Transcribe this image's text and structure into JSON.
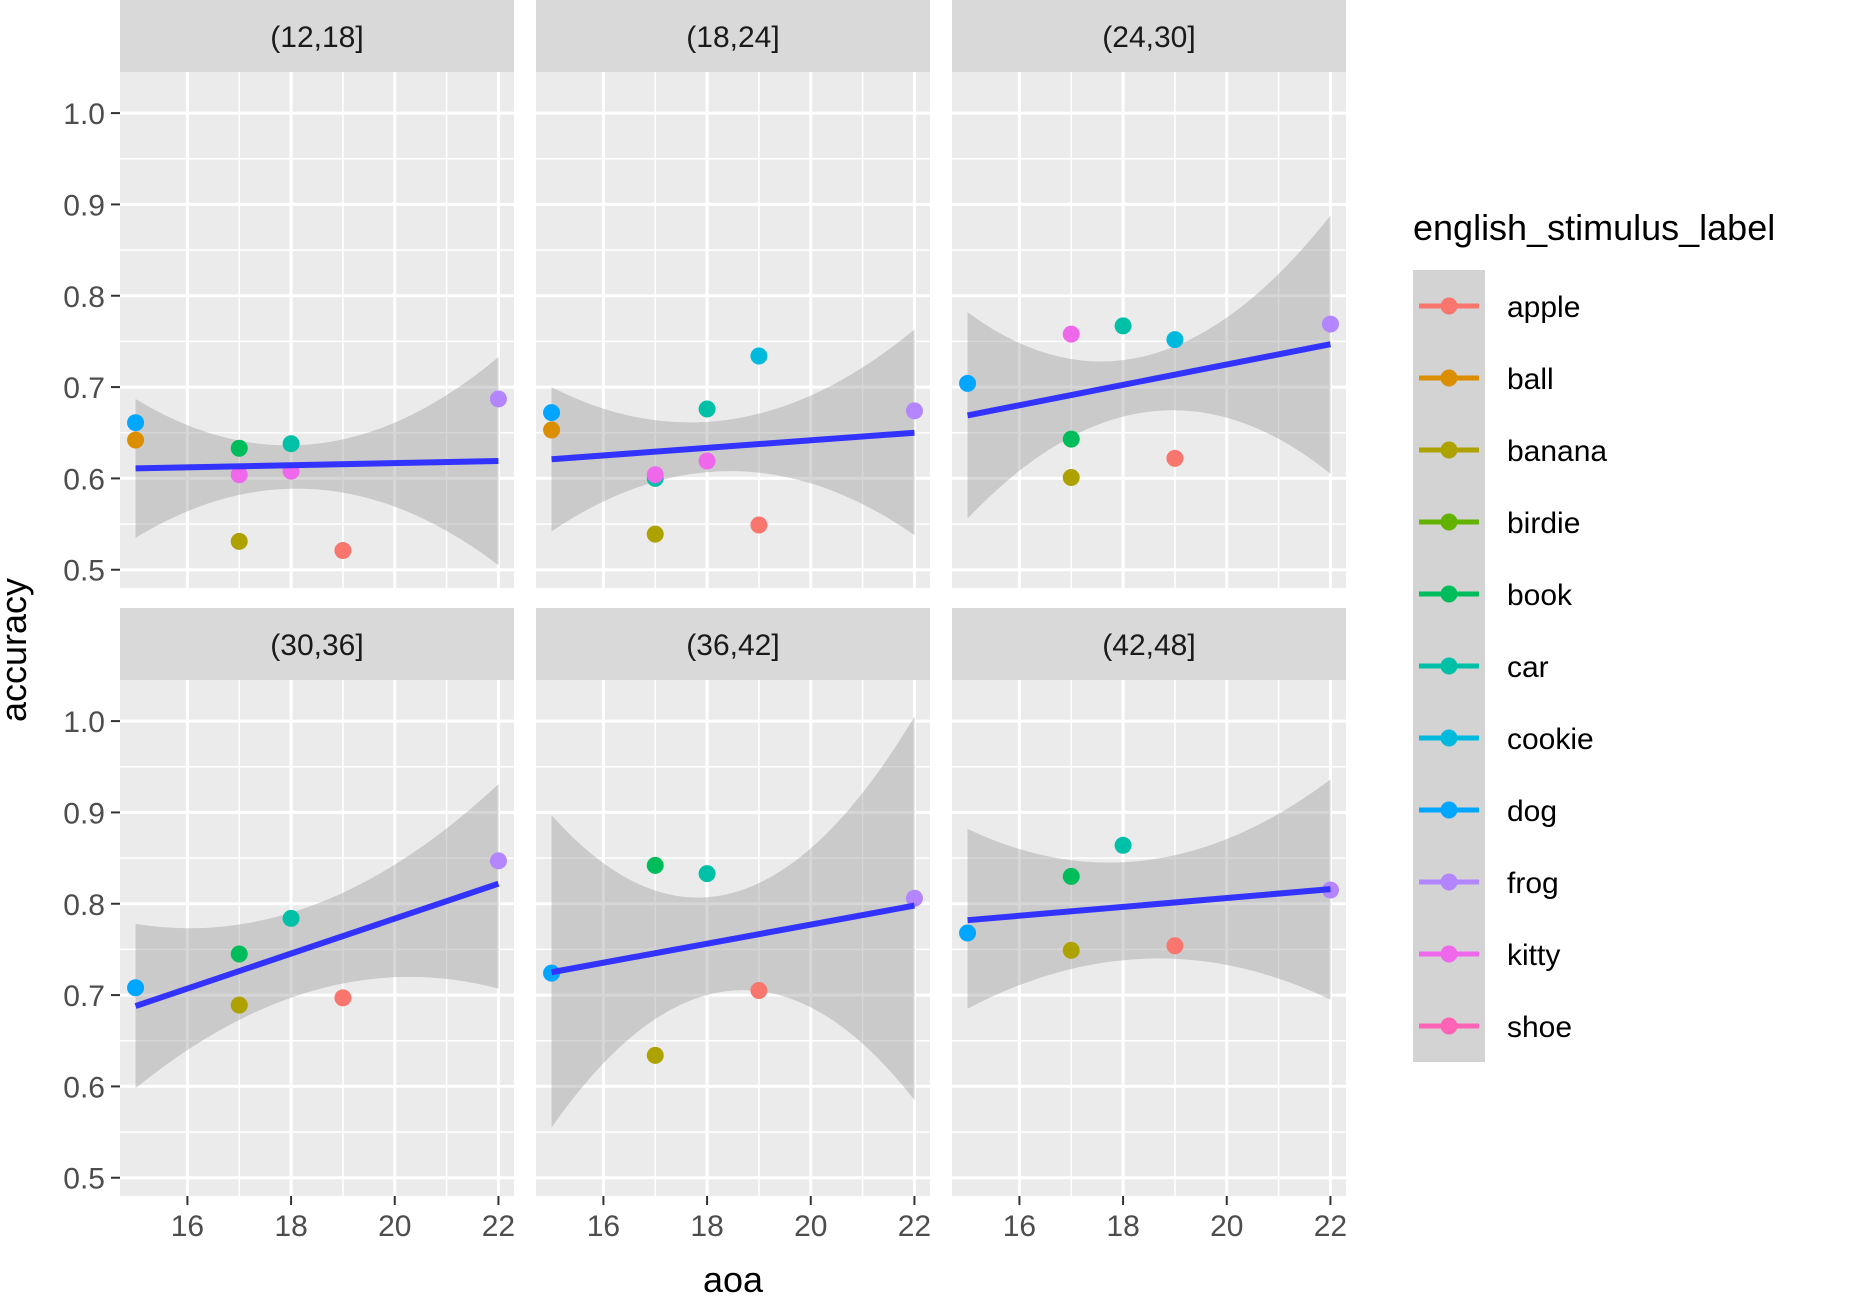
{
  "chart_data": {
    "type": "scatter",
    "xlabel": "aoa",
    "ylabel": "accuracy",
    "xlim": [
      14.7,
      22.3
    ],
    "ylim": [
      0.48,
      1.045
    ],
    "x_ticks": [
      16,
      18,
      20,
      22
    ],
    "y_ticks": [
      0.5,
      0.6,
      0.7,
      0.8,
      0.9,
      1.0
    ],
    "y_tick_labels": [
      "0.5",
      "0.6",
      "0.7",
      "0.8",
      "0.9",
      "1.0"
    ],
    "grid": true,
    "legend": {
      "title": "english_stimulus_label",
      "position": "right",
      "entries": [
        {
          "label": "apple",
          "color": "#F8766D"
        },
        {
          "label": "ball",
          "color": "#DB8E00"
        },
        {
          "label": "banana",
          "color": "#AEA200"
        },
        {
          "label": "birdie",
          "color": "#64B200"
        },
        {
          "label": "book",
          "color": "#00BD5C"
        },
        {
          "label": "car",
          "color": "#00C1A7"
        },
        {
          "label": "cookie",
          "color": "#00BADE"
        },
        {
          "label": "dog",
          "color": "#00A6FF"
        },
        {
          "label": "frog",
          "color": "#B385FF"
        },
        {
          "label": "kitty",
          "color": "#EF67EB"
        },
        {
          "label": "shoe",
          "color": "#FF63B6"
        }
      ]
    },
    "fit_color": "#3333FF",
    "panels": [
      {
        "strip": "(12,18]",
        "points": [
          {
            "label": "dog",
            "x": 15,
            "y": 0.661
          },
          {
            "label": "ball",
            "x": 15,
            "y": 0.642
          },
          {
            "label": "book",
            "x": 17,
            "y": 0.633
          },
          {
            "label": "kitty",
            "x": 17,
            "y": 0.604
          },
          {
            "label": "banana",
            "x": 17,
            "y": 0.531
          },
          {
            "label": "car",
            "x": 18,
            "y": 0.638
          },
          {
            "label": "kitty",
            "x": 18,
            "y": 0.608
          },
          {
            "label": "apple",
            "x": 19,
            "y": 0.521
          },
          {
            "label": "frog",
            "x": 22,
            "y": 0.687
          }
        ],
        "fit": {
          "x": [
            15,
            22
          ],
          "y": [
            0.611,
            0.619
          ]
        },
        "ribbon": {
          "x": [
            15,
            18.5,
            22
          ],
          "lower": [
            0.535,
            0.588,
            0.505
          ],
          "upper": [
            0.687,
            0.638,
            0.733
          ]
        }
      },
      {
        "strip": "(18,24]",
        "points": [
          {
            "label": "dog",
            "x": 15,
            "y": 0.672
          },
          {
            "label": "ball",
            "x": 15,
            "y": 0.653
          },
          {
            "label": "banana",
            "x": 17,
            "y": 0.539
          },
          {
            "label": "car",
            "x": 17,
            "y": 0.6
          },
          {
            "label": "kitty",
            "x": 17,
            "y": 0.604
          },
          {
            "label": "car",
            "x": 18,
            "y": 0.676
          },
          {
            "label": "kitty",
            "x": 18,
            "y": 0.619
          },
          {
            "label": "cookie",
            "x": 19,
            "y": 0.734
          },
          {
            "label": "apple",
            "x": 19,
            "y": 0.549
          },
          {
            "label": "frog",
            "x": 22,
            "y": 0.674
          }
        ],
        "fit": {
          "x": [
            15,
            22
          ],
          "y": [
            0.621,
            0.65
          ]
        },
        "ribbon": {
          "x": [
            15,
            18.5,
            22
          ],
          "lower": [
            0.542,
            0.608,
            0.538
          ],
          "upper": [
            0.7,
            0.665,
            0.763
          ]
        }
      },
      {
        "strip": "(24,30]",
        "points": [
          {
            "label": "dog",
            "x": 15,
            "y": 0.704
          },
          {
            "label": "kitty",
            "x": 17,
            "y": 0.758
          },
          {
            "label": "book",
            "x": 17,
            "y": 0.643
          },
          {
            "label": "banana",
            "x": 17,
            "y": 0.601
          },
          {
            "label": "car",
            "x": 18,
            "y": 0.767
          },
          {
            "label": "cookie",
            "x": 19,
            "y": 0.752
          },
          {
            "label": "apple",
            "x": 19,
            "y": 0.622
          },
          {
            "label": "frog",
            "x": 22,
            "y": 0.769
          }
        ],
        "fit": {
          "x": [
            15,
            22
          ],
          "y": [
            0.669,
            0.747
          ]
        },
        "ribbon": {
          "x": [
            15,
            18.5,
            22
          ],
          "lower": [
            0.556,
            0.673,
            0.605
          ],
          "upper": [
            0.782,
            0.735,
            0.888
          ]
        }
      },
      {
        "strip": "(30,36]",
        "points": [
          {
            "label": "dog",
            "x": 15,
            "y": 0.708
          },
          {
            "label": "book",
            "x": 17,
            "y": 0.745
          },
          {
            "label": "banana",
            "x": 17,
            "y": 0.689
          },
          {
            "label": "car",
            "x": 18,
            "y": 0.784
          },
          {
            "label": "apple",
            "x": 19,
            "y": 0.697
          },
          {
            "label": "frog",
            "x": 22,
            "y": 0.847
          }
        ],
        "fit": {
          "x": [
            15,
            22
          ],
          "y": [
            0.688,
            0.822
          ]
        },
        "ribbon": {
          "x": [
            15,
            18.5,
            22
          ],
          "lower": [
            0.598,
            0.706,
            0.707
          ],
          "upper": [
            0.778,
            0.8,
            0.931
          ]
        }
      },
      {
        "strip": "(36,42]",
        "points": [
          {
            "label": "dog",
            "x": 15,
            "y": 0.724
          },
          {
            "label": "book",
            "x": 17,
            "y": 0.842
          },
          {
            "label": "banana",
            "x": 17,
            "y": 0.634
          },
          {
            "label": "car",
            "x": 18,
            "y": 0.833
          },
          {
            "label": "apple",
            "x": 19,
            "y": 0.705
          },
          {
            "label": "frog",
            "x": 22,
            "y": 0.806
          }
        ],
        "fit": {
          "x": [
            15,
            22
          ],
          "y": [
            0.725,
            0.798
          ]
        },
        "ribbon": {
          "x": [
            15,
            18.5,
            22
          ],
          "lower": [
            0.555,
            0.705,
            0.585
          ],
          "upper": [
            0.897,
            0.812,
            1.005
          ]
        }
      },
      {
        "strip": "(42,48]",
        "points": [
          {
            "label": "dog",
            "x": 15,
            "y": 0.768
          },
          {
            "label": "book",
            "x": 17,
            "y": 0.83
          },
          {
            "label": "banana",
            "x": 17,
            "y": 0.749
          },
          {
            "label": "car",
            "x": 18,
            "y": 0.864
          },
          {
            "label": "apple",
            "x": 19,
            "y": 0.754
          },
          {
            "label": "frog",
            "x": 22,
            "y": 0.815
          }
        ],
        "fit": {
          "x": [
            15,
            22
          ],
          "y": [
            0.782,
            0.816
          ]
        },
        "ribbon": {
          "x": [
            15,
            18.5,
            22
          ],
          "lower": [
            0.685,
            0.74,
            0.695
          ],
          "upper": [
            0.882,
            0.848,
            0.936
          ]
        }
      }
    ]
  }
}
